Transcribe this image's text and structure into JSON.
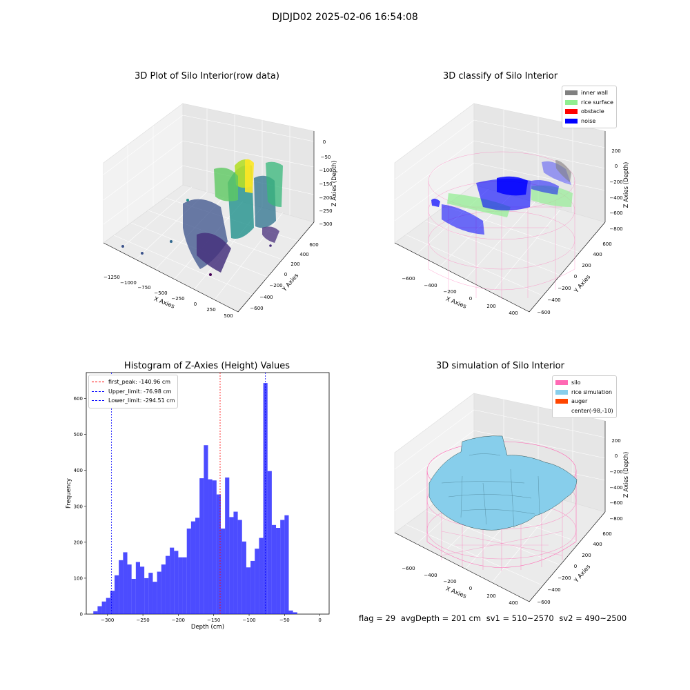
{
  "figure": {
    "suptitle": "DJDJD02 2025-02-06 16:54:08",
    "status": {
      "flag": "flag = 29",
      "avg_depth": "avgDepth = 201 cm",
      "sv1": "sv1 = 510~2570",
      "sv2": "sv2 = 490~2500"
    }
  },
  "plots": {
    "raw": {
      "title": "3D Plot of Silo Interior(row data)",
      "x_label": "X Axies",
      "y_label": "Y Axies",
      "z_label": "Z Axies (Depth)",
      "x_ticks": [
        "−1250",
        "−1000",
        "−750",
        "−500",
        "−250",
        "0",
        "250",
        "500"
      ],
      "y_ticks": [
        "−600",
        "−400",
        "−200",
        "0",
        "200",
        "400",
        "600"
      ],
      "z_ticks": [
        "0",
        "−50",
        "−100",
        "−150",
        "−200",
        "−250",
        "−300"
      ]
    },
    "classify": {
      "title": "3D classify of Silo Interior",
      "x_label": "X Axies",
      "y_label": "Y Axies",
      "z_label": "Z Axies (Depth)",
      "x_ticks": [
        "−600",
        "−400",
        "−200",
        "0",
        "200",
        "400"
      ],
      "y_ticks": [
        "−600",
        "−400",
        "−200",
        "0",
        "200",
        "400",
        "600"
      ],
      "z_ticks": [
        "200",
        "0",
        "−200",
        "−400",
        "−600",
        "−800"
      ],
      "legend": [
        {
          "label": "inner wall",
          "color": "#808080"
        },
        {
          "label": "rice surface",
          "color": "#90ee90"
        },
        {
          "label": "obstacle",
          "color": "#ff0000"
        },
        {
          "label": "noise",
          "color": "#0000ff"
        }
      ]
    },
    "simulation": {
      "title": "3D simulation of Silo Interior",
      "x_label": "X Axies",
      "y_label": "Y Axies",
      "z_label": "Z Axies (Depth)",
      "x_ticks": [
        "−600",
        "−400",
        "−200",
        "0",
        "200",
        "400"
      ],
      "y_ticks": [
        "−600",
        "−400",
        "−200",
        "0",
        "200",
        "400",
        "600"
      ],
      "z_ticks": [
        "200",
        "0",
        "−200",
        "−400",
        "−600",
        "−800"
      ],
      "legend": [
        {
          "label": "silo",
          "color": "#ff69b4"
        },
        {
          "label": "rice simulation",
          "color": "#87ceeb"
        },
        {
          "label": "auger",
          "color": "#ff4500"
        },
        {
          "label": "center(-98,-10)",
          "color": ""
        }
      ]
    }
  },
  "chart_data": {
    "type": "bar",
    "title": "Histogram of Z-Axies (Height) Values",
    "xlabel": "Depth (cm)",
    "ylabel": "Frequency",
    "xlim": [
      -330,
      13
    ],
    "ylim": [
      0,
      672
    ],
    "x_ticks": [
      -300,
      -250,
      -200,
      -150,
      -100,
      -50,
      0
    ],
    "y_ticks": [
      0,
      100,
      200,
      300,
      400,
      500,
      600
    ],
    "bin_start": -320,
    "bin_width": 6,
    "values": [
      8,
      22,
      35,
      45,
      65,
      108,
      150,
      172,
      138,
      98,
      145,
      132,
      100,
      115,
      90,
      118,
      138,
      162,
      185,
      176,
      158,
      158,
      238,
      258,
      268,
      378,
      470,
      375,
      372,
      333,
      238,
      380,
      270,
      285,
      262,
      202,
      130,
      148,
      182,
      212,
      643,
      398,
      248,
      240,
      262,
      275,
      10,
      5
    ],
    "color": "#0000ff",
    "vlines": [
      {
        "label": "first_peak: -140.96 cm",
        "value": -140.96,
        "color": "#ff0000"
      },
      {
        "label": "Upper_limit: -76.98 cm",
        "value": -76.98,
        "color": "#0000ff"
      },
      {
        "label": "Lower_limit: -294.51 cm",
        "value": -294.51,
        "color": "#0000ff"
      }
    ]
  }
}
